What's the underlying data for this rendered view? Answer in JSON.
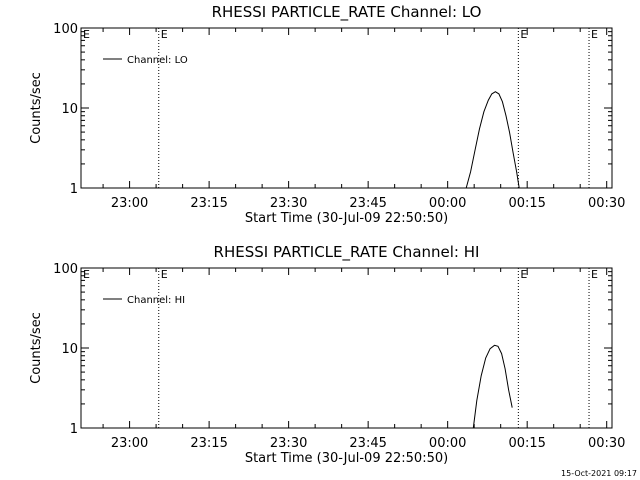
{
  "timestamp": "15-Oct-2021 09:17",
  "chart_data": [
    {
      "type": "line",
      "title": "RHESSI PARTICLE_RATE Channel: LO",
      "xlabel": "Start Time (30-Jul-09 22:50:50)",
      "ylabel": "Counts/sec",
      "yscale": "log",
      "ylim": [
        1,
        100
      ],
      "xlim": [
        "22:50:50",
        "00:31:00"
      ],
      "xticks": [
        "23:00",
        "23:15",
        "23:30",
        "23:45",
        "00:00",
        "00:15",
        "00:30"
      ],
      "yticks": [
        "1",
        "10",
        "100"
      ],
      "grid": false,
      "legend": {
        "position": "top-left",
        "entries": [
          "Channel: LO"
        ]
      },
      "markers": [
        {
          "x": "23:05:30",
          "label": "E"
        },
        {
          "x": "00:13:20",
          "label": "E"
        },
        {
          "x": "00:26:40",
          "label": "E"
        }
      ],
      "series": [
        {
          "name": "Channel: LO",
          "color": "#000000",
          "x": [
            "00:03:30",
            "00:04:20",
            "00:05:10",
            "00:06:00",
            "00:06:50",
            "00:07:40",
            "00:08:20",
            "00:09:00",
            "00:09:40",
            "00:10:20",
            "00:11:00",
            "00:11:40",
            "00:12:20",
            "00:13:00",
            "00:13:30"
          ],
          "y": [
            1.0,
            1.6,
            3.0,
            5.5,
            9.0,
            12.5,
            15.0,
            16.0,
            15.0,
            12.0,
            8.0,
            5.0,
            2.8,
            1.6,
            1.0
          ]
        }
      ]
    },
    {
      "type": "line",
      "title": "RHESSI PARTICLE_RATE Channel: HI",
      "xlabel": "Start Time (30-Jul-09 22:50:50)",
      "ylabel": "Counts/sec",
      "yscale": "log",
      "ylim": [
        1,
        100
      ],
      "xlim": [
        "22:50:50",
        "00:31:00"
      ],
      "xticks": [
        "23:00",
        "23:15",
        "23:30",
        "23:45",
        "00:00",
        "00:15",
        "00:30"
      ],
      "yticks": [
        "1",
        "10",
        "100"
      ],
      "grid": false,
      "legend": {
        "position": "top-left",
        "entries": [
          "Channel: HI"
        ]
      },
      "markers": [
        {
          "x": "23:05:30",
          "label": "E"
        },
        {
          "x": "00:13:20",
          "label": "E"
        },
        {
          "x": "00:26:40",
          "label": "E"
        }
      ],
      "series": [
        {
          "name": "Channel: HI",
          "color": "#000000",
          "x": [
            "00:04:50",
            "00:05:30",
            "00:06:20",
            "00:07:10",
            "00:08:00",
            "00:08:50",
            "00:09:30",
            "00:10:10",
            "00:10:50",
            "00:11:30",
            "00:12:10"
          ],
          "y": [
            1.0,
            2.2,
            4.5,
            7.5,
            9.8,
            10.8,
            10.5,
            8.5,
            5.5,
            3.0,
            1.8
          ]
        }
      ]
    }
  ]
}
